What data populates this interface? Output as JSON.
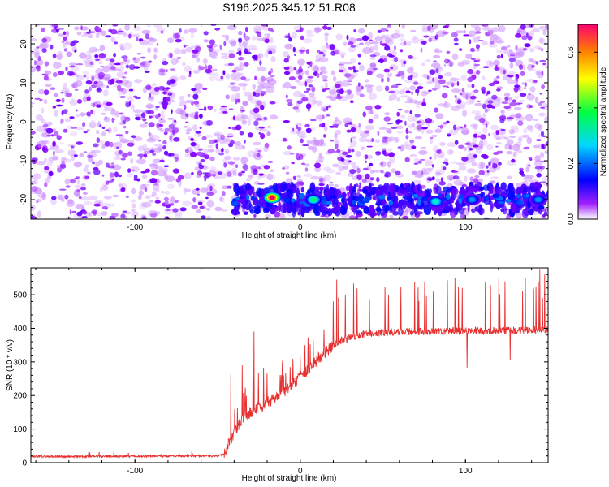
{
  "title": "S196.2025.345.12.51.R08",
  "chart_data": [
    {
      "type": "heatmap",
      "xlabel": "Height of straight line (km)",
      "ylabel": "Frequency (Hz)",
      "xlim": [
        -163,
        150
      ],
      "ylim": [
        -25,
        25
      ],
      "xticks": [
        -100,
        0,
        100
      ],
      "yticks": [
        -20,
        -10,
        0,
        10,
        20
      ],
      "colorbar": {
        "label": "Normalized spectral amplitude",
        "range": [
          0.0,
          0.7
        ],
        "ticks": [
          0.0,
          0.2,
          0.4,
          0.6
        ],
        "colormap": [
          "#ffffff",
          "#8a00ff",
          "#0000ff",
          "#00e0ff",
          "#00ff40",
          "#ffff00",
          "#ff8000",
          "#ff0060"
        ]
      },
      "features": {
        "background_level": 0.05,
        "quiet_column_x": [
          -16,
          -11
        ],
        "band_frequency": -20,
        "band_x_start": -40,
        "hot_spots": [
          {
            "x": -17,
            "y": -19.5,
            "value": 0.7
          },
          {
            "x": 8,
            "y": -20,
            "value": 0.35
          },
          {
            "x": 82,
            "y": -20.5,
            "value": 0.3
          },
          {
            "x": 104,
            "y": -20,
            "value": 0.22
          },
          {
            "x": 144,
            "y": -20,
            "value": 0.22
          }
        ]
      },
      "grid": false,
      "legend": "none"
    },
    {
      "type": "line",
      "xlabel": "Height of straight line (km)",
      "ylabel": "SNR (10 * v/v)",
      "xlim": [
        -163,
        150
      ],
      "ylim": [
        0,
        580
      ],
      "xticks": [
        -100,
        0,
        100
      ],
      "yticks": [
        0,
        100,
        200,
        300,
        400,
        500
      ],
      "color": "#e83030",
      "series_profile": [
        {
          "x": -163,
          "y": 18
        },
        {
          "x": -50,
          "y": 20
        },
        {
          "x": -46,
          "y": 25
        },
        {
          "x": -42,
          "y": 70
        },
        {
          "x": -35,
          "y": 130
        },
        {
          "x": -25,
          "y": 165
        },
        {
          "x": -15,
          "y": 190
        },
        {
          "x": -5,
          "y": 230
        },
        {
          "x": 5,
          "y": 280
        },
        {
          "x": 15,
          "y": 330
        },
        {
          "x": 25,
          "y": 365
        },
        {
          "x": 40,
          "y": 385
        },
        {
          "x": 60,
          "y": 390
        },
        {
          "x": 100,
          "y": 392
        },
        {
          "x": 150,
          "y": 395
        }
      ],
      "peaks": [
        {
          "x": -42,
          "y": 265
        },
        {
          "x": -35,
          "y": 290
        },
        {
          "x": -28,
          "y": 390
        },
        {
          "x": -20,
          "y": 265
        },
        {
          "x": -10,
          "y": 260
        },
        {
          "x": 20,
          "y": 480
        },
        {
          "x": 22,
          "y": 545
        },
        {
          "x": 145,
          "y": 575
        },
        {
          "x": 148,
          "y": 560
        }
      ],
      "dips": [
        {
          "x": 101,
          "y": 280
        },
        {
          "x": 127,
          "y": 305
        }
      ],
      "grid": false,
      "legend": "none"
    }
  ]
}
